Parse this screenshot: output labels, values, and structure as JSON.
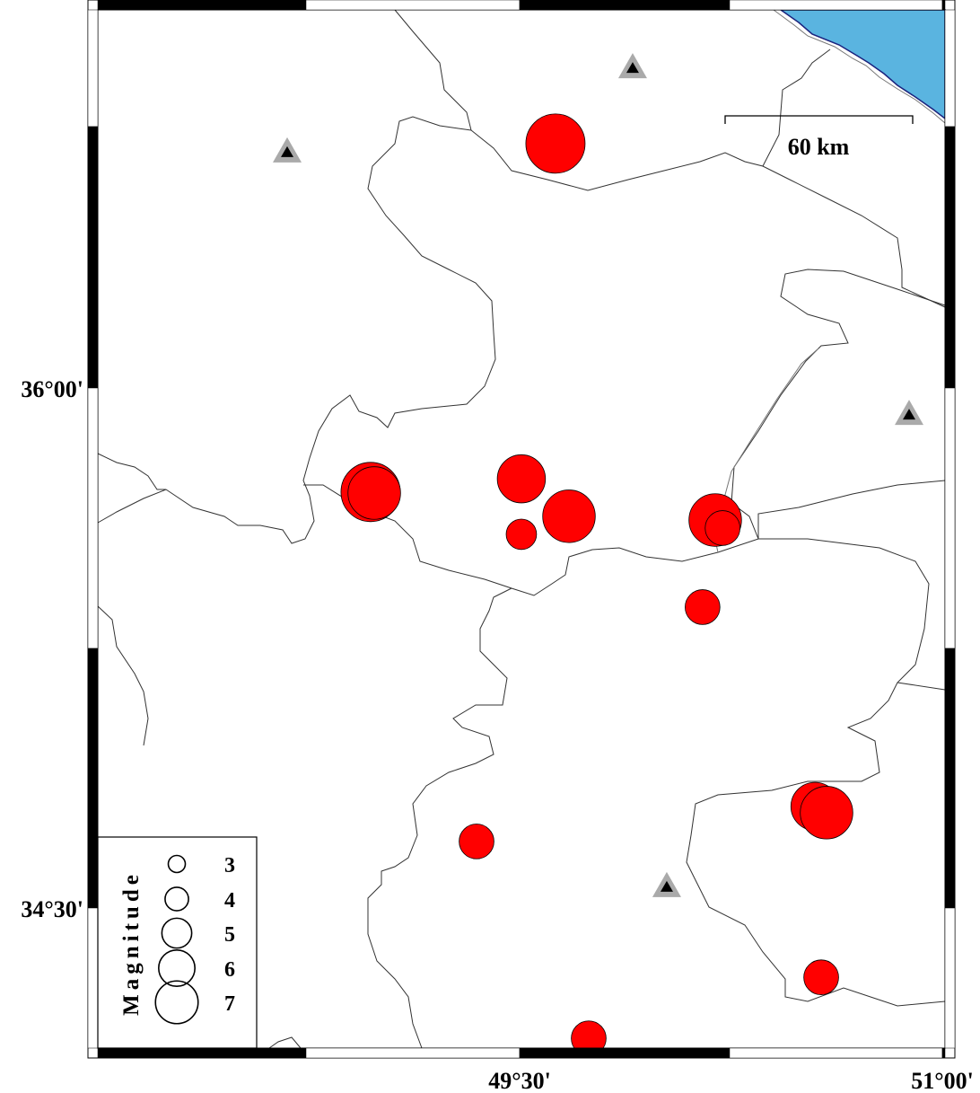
{
  "map": {
    "extent": {
      "lon": [
        48.0,
        51.0
      ],
      "lat": [
        34.1,
        37.1
      ]
    },
    "x_tick_labels": [
      {
        "lon": 49.5,
        "label": "49°30'"
      },
      {
        "lon": 51.0,
        "label": "51°00'"
      }
    ],
    "y_tick_labels": [
      {
        "lat": 36.0,
        "label": "36°00'"
      },
      {
        "lat": 34.5,
        "label": "34°30'"
      }
    ],
    "scale_bar": {
      "label": "60 km"
    },
    "colors": {
      "sea": "#5ab4e0",
      "coast": "#1a237e",
      "event_fill": "#ff0000",
      "station_outer": "#aaaaaa",
      "station_inner": "#000000"
    },
    "stations": [
      {
        "lon": 48.672,
        "lat": 36.679
      },
      {
        "lon": 49.898,
        "lat": 36.922
      },
      {
        "lon": 50.879,
        "lat": 35.922
      },
      {
        "lon": 50.019,
        "lat": 34.56
      }
    ],
    "events": [
      {
        "lon": 49.624,
        "lat": 36.705,
        "mag": 3.0
      },
      {
        "lon": 48.968,
        "lat": 35.7,
        "mag": 3.0
      },
      {
        "lon": 48.981,
        "lat": 35.697,
        "mag": 2.7
      },
      {
        "lon": 49.503,
        "lat": 35.738,
        "mag": 2.5
      },
      {
        "lon": 49.672,
        "lat": 35.63,
        "mag": 2.7
      },
      {
        "lon": 49.503,
        "lat": 35.578,
        "mag": 1.7
      },
      {
        "lon": 50.191,
        "lat": 35.619,
        "mag": 2.7
      },
      {
        "lon": 50.217,
        "lat": 35.596,
        "mag": 1.9
      },
      {
        "lon": 50.146,
        "lat": 35.368,
        "mag": 1.9
      },
      {
        "lon": 49.344,
        "lat": 34.692,
        "mag": 1.9
      },
      {
        "lon": 50.545,
        "lat": 34.793,
        "mag": 2.5
      },
      {
        "lon": 50.586,
        "lat": 34.775,
        "mag": 2.7
      },
      {
        "lon": 50.567,
        "lat": 34.3,
        "mag": 1.9
      },
      {
        "lon": 49.742,
        "lat": 34.124,
        "mag": 1.9
      }
    ]
  },
  "legend": {
    "title": "Magnitude",
    "items": [
      {
        "mag": 3,
        "label": "3"
      },
      {
        "mag": 4,
        "label": "4"
      },
      {
        "mag": 5,
        "label": "5"
      },
      {
        "mag": 6,
        "label": "6"
      },
      {
        "mag": 7,
        "label": "7"
      }
    ]
  }
}
